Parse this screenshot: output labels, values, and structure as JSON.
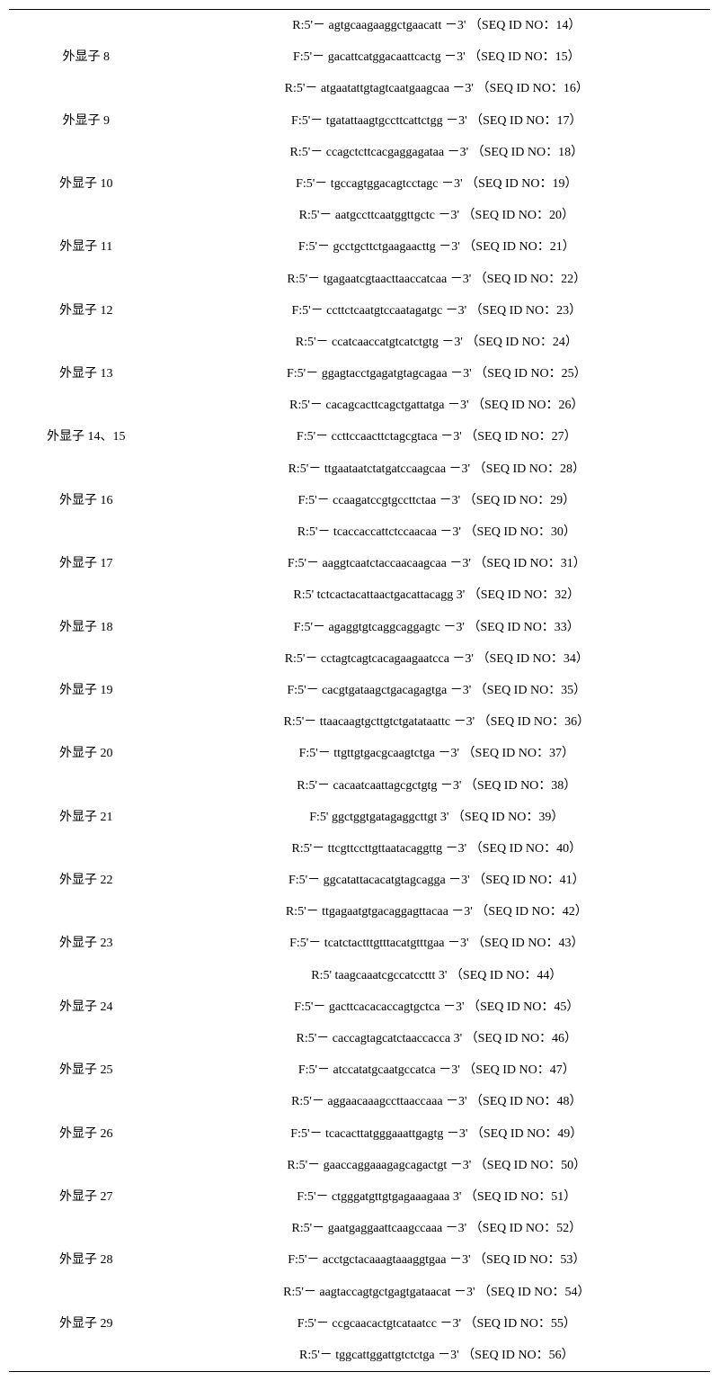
{
  "rows": [
    {
      "label": "",
      "seq": "R:5'－ agtgcaagaaggctgaacatt －3'  （SEQ ID NO：14）",
      "topBorder": true
    },
    {
      "label": "外显子 8",
      "seq": "F:5'－ gacattcatggacaattcactg －3'  （SEQ ID NO：15）"
    },
    {
      "label": "",
      "seq": "R:5'－ atgaatattgtagtcaatgaagcaa －3'  （SEQ ID NO：16）"
    },
    {
      "label": "外显子 9",
      "seq": "F:5'－ tgatattaagtgccttcattctgg －3'  （SEQ ID NO：17）"
    },
    {
      "label": "",
      "seq": "R:5'－ ccagctcttcacgaggagataa －3'  （SEQ ID NO：18）"
    },
    {
      "label": "外显子 10",
      "seq": "F:5'－ tgccagtggacagtcctagc －3'  （SEQ ID NO：19）"
    },
    {
      "label": "",
      "seq": "R:5'－ aatgccttcaatggttgctc －3'  （SEQ ID NO：20）"
    },
    {
      "label": "外显子 11",
      "seq": "F:5'－ gcctgcttctgaagaacttg －3'  （SEQ ID NO：21）"
    },
    {
      "label": "",
      "seq": "R:5'－ tgagaatcgtaacttaaccatcaa －3'  （SEQ ID NO：22）"
    },
    {
      "label": "外显子 12",
      "seq": "F:5'－ ccttctcaatgtccaatagatgc －3'  （SEQ ID NO：23）"
    },
    {
      "label": "",
      "seq": "R:5'－ ccatcaaccatgtcatctgtg －3'  （SEQ ID NO：24）"
    },
    {
      "label": "外显子 13",
      "seq": "F:5'－ ggagtacctgagatgtagcagaa －3'  （SEQ ID NO：25）"
    },
    {
      "label": "",
      "seq": "R:5'－ cacagcacttcagctgattatga －3'  （SEQ ID NO：26）"
    },
    {
      "label": "外显子 14、15",
      "seq": "F:5'－ ccttccaacttctagcgtaca －3'  （SEQ ID NO：27）"
    },
    {
      "label": "",
      "seq": "R:5'－ ttgaataatctatgatccaagcaa －3'  （SEQ ID NO：28）"
    },
    {
      "label": "外显子 16",
      "seq": "F:5'－ ccaagatccgtgccttctaa －3'  （SEQ ID NO：29）"
    },
    {
      "label": "",
      "seq": "R:5'－ tcaccaccattctccaacaa －3'  （SEQ ID NO：30）"
    },
    {
      "label": "外显子 17",
      "seq": "F:5'－ aaggtcaatctaccaacaagcaa －3'  （SEQ ID NO：31）"
    },
    {
      "label": "",
      "seq": "R:5'  tctcactacattaactgacattacagg  3'  （SEQ ID NO：32）"
    },
    {
      "label": "外显子 18",
      "seq": "F:5'－ agaggtgtcaggcaggagtc －3'  （SEQ ID NO：33）"
    },
    {
      "label": "",
      "seq": "R:5'－ cctagtcagtcacagaagaatcca －3'  （SEQ ID NO：34）"
    },
    {
      "label": "外显子 19",
      "seq": "F:5'－ cacgtgataagctgacagagtga －3'  （SEQ ID NO：35）"
    },
    {
      "label": "",
      "seq": "R:5'－ ttaacaagtgcttgtctgatataattc －3'  （SEQ ID NO：36）"
    },
    {
      "label": "外显子 20",
      "seq": "F:5'－ ttgttgtgacgcaagtctga －3'  （SEQ ID NO：37）"
    },
    {
      "label": "",
      "seq": "R:5'－ cacaatcaattagcgctgtg －3'  （SEQ ID NO：38）"
    },
    {
      "label": "外显子 21",
      "seq": "F:5'  ggctggtgatagaggcttgt  3'  （SEQ ID NO：39）"
    },
    {
      "label": "",
      "seq": "R:5'－ ttcgttccttgttaatacaggttg －3'  （SEQ ID NO：40）"
    },
    {
      "label": "外显子 22",
      "seq": "F:5'－ ggcatattacacatgtagcagga －3'  （SEQ ID NO：41）"
    },
    {
      "label": "",
      "seq": "R:5'－ ttgagaatgtgacaggagttacaa －3'  （SEQ ID NO：42）"
    },
    {
      "label": "外显子 23",
      "seq": "F:5'－ tcatctactttgtttacatgtttgaa －3'  （SEQ ID NO：43）"
    },
    {
      "label": "",
      "seq": "R:5'  taagcaaatcgccatccttt  3'  （SEQ ID NO：44）"
    },
    {
      "label": "外显子 24",
      "seq": "F:5'－ gacttcacacaccagtgctca －3'  （SEQ ID NO：45）"
    },
    {
      "label": "",
      "seq": "R:5'－ caccagtagcatctaaccacca  3'  （SEQ ID NO：46）"
    },
    {
      "label": "外显子 25",
      "seq": "F:5'－ atccatatgcaatgccatca －3'  （SEQ ID NO：47）"
    },
    {
      "label": "",
      "seq": "R:5'－ aggaacaaagccttaaccaaa －3'  （SEQ ID NO：48）"
    },
    {
      "label": "外显子 26",
      "seq": "F:5'－ tcacacttatgggaaattgagtg －3'  （SEQ ID NO：49）"
    },
    {
      "label": "",
      "seq": "R:5'－ gaaccaggaaagagcagactgt －3'  （SEQ ID NO：50）"
    },
    {
      "label": "外显子 27",
      "seq": "F:5'－ ctgggatgttgtgagaaagaaa  3'  （SEQ ID NO：51）"
    },
    {
      "label": "",
      "seq": "R:5'－ gaatgaggaattcaagccaaa －3'  （SEQ ID NO：52）"
    },
    {
      "label": "外显子 28",
      "seq": "F:5'－ acctgctacaaagtaaaggtgaa －3'  （SEQ ID NO：53）"
    },
    {
      "label": "",
      "seq": "R:5'－ aagtaccagtgctgagtgataacat －3'  （SEQ ID NO：54）"
    },
    {
      "label": "外显子 29",
      "seq": "F:5'－ ccgcaacactgtcataatcc －3'  （SEQ ID NO：55）"
    },
    {
      "label": "",
      "seq": "R:5'－ tggcattggattgtctctga －3'  （SEQ ID NO：56）",
      "bottomBorder": true
    }
  ]
}
